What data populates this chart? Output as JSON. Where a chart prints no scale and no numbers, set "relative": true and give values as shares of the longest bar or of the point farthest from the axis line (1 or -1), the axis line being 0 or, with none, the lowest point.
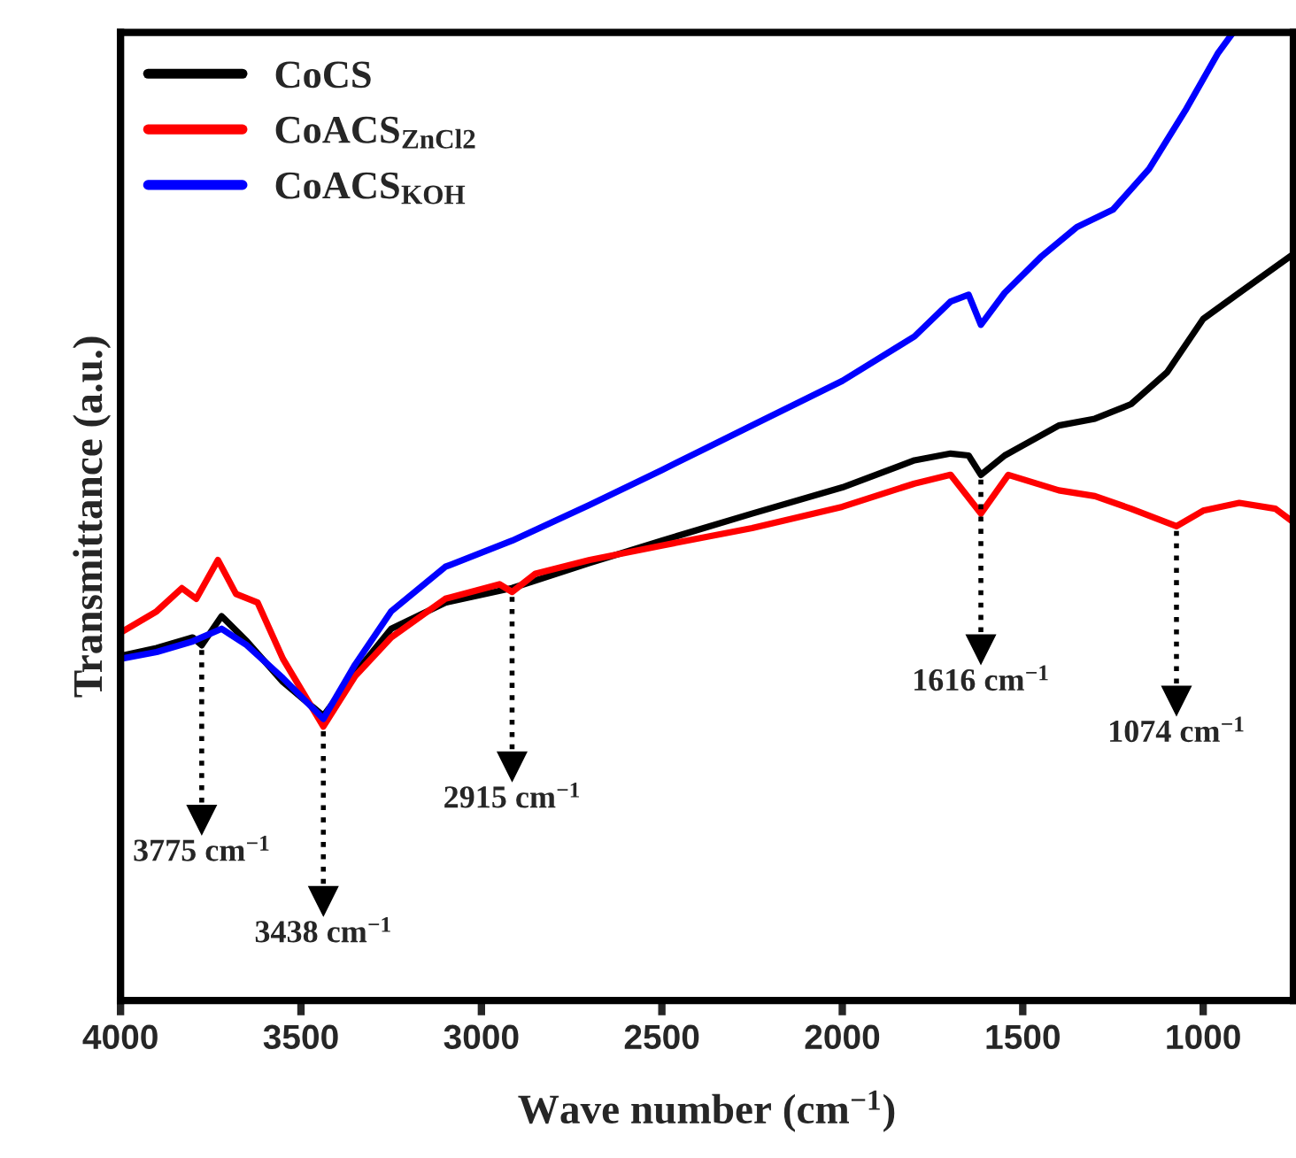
{
  "chart_data": {
    "type": "line",
    "relative": true,
    "xlabel": "Wave number (cm$^{−1}$)",
    "ylabel": "Transmittance (a.u.)",
    "xlim": [
      4000,
      750
    ],
    "xticks": [
      4000,
      3500,
      3000,
      2500,
      2000,
      1500,
      1000
    ],
    "legend": "top left",
    "grid": false,
    "marker": "none",
    "line_style": "solid",
    "x": [
      4000,
      3900,
      3800,
      3775,
      3720,
      3650,
      3550,
      3438,
      3350,
      3250,
      3100,
      2915,
      2700,
      2500,
      2250,
      2000,
      1800,
      1700,
      1650,
      1616,
      1550,
      1400,
      1300,
      1200,
      1100,
      1000,
      900,
      750
    ],
    "series": [
      {
        "name": "CoCS",
        "color": "#000000",
        "values": [
          0.356,
          0.364,
          0.375,
          0.367,
          0.397,
          0.371,
          0.329,
          0.294,
          0.338,
          0.384,
          0.411,
          0.426,
          0.452,
          0.475,
          0.503,
          0.53,
          0.558,
          0.565,
          0.563,
          0.543,
          0.563,
          0.594,
          0.601,
          0.616,
          0.649,
          0.704,
          0.731,
          0.771
        ]
      },
      {
        "name": "CoACS$_{ZnCl2}$",
        "color": "#ff0000",
        "x": [
          4000,
          3900,
          3830,
          3790,
          3730,
          3680,
          3620,
          3550,
          3438,
          3350,
          3250,
          3100,
          2950,
          2915,
          2850,
          2700,
          2500,
          2250,
          2000,
          1800,
          1700,
          1616,
          1540,
          1400,
          1300,
          1200,
          1074,
          1000,
          900,
          800,
          750
        ],
        "values": [
          0.38,
          0.402,
          0.426,
          0.415,
          0.455,
          0.42,
          0.411,
          0.353,
          0.283,
          0.335,
          0.375,
          0.415,
          0.43,
          0.422,
          0.441,
          0.455,
          0.47,
          0.488,
          0.51,
          0.534,
          0.543,
          0.503,
          0.543,
          0.527,
          0.521,
          0.508,
          0.49,
          0.506,
          0.514,
          0.508,
          0.494
        ]
      },
      {
        "name": "CoACS$_{KOH}$",
        "color": "#0000ff",
        "x": [
          4000,
          3900,
          3800,
          3720,
          3650,
          3550,
          3438,
          3350,
          3250,
          3100,
          2915,
          2700,
          2500,
          2250,
          2000,
          1800,
          1700,
          1650,
          1616,
          1550,
          1450,
          1350,
          1250,
          1150,
          1050,
          960,
          917
        ],
        "values": [
          0.353,
          0.36,
          0.371,
          0.384,
          0.367,
          0.333,
          0.291,
          0.347,
          0.402,
          0.448,
          0.475,
          0.512,
          0.548,
          0.594,
          0.64,
          0.686,
          0.722,
          0.729,
          0.698,
          0.731,
          0.768,
          0.799,
          0.817,
          0.859,
          0.919,
          0.978,
          1.0
        ]
      }
    ],
    "annotations": [
      {
        "text": "3775 cm$^{−1}$",
        "x": 3775,
        "y": 0.367
      },
      {
        "text": "3438 cm$^{−1}$",
        "x": 3438,
        "y": 0.283
      },
      {
        "text": "2915 cm$^{−1}$",
        "x": 2915,
        "y": 0.422
      },
      {
        "text": "1616 cm$^{−1}$",
        "x": 1616,
        "y": 0.543
      },
      {
        "text": "1074 cm$^{−1}$",
        "x": 1074,
        "y": 0.49
      }
    ]
  }
}
